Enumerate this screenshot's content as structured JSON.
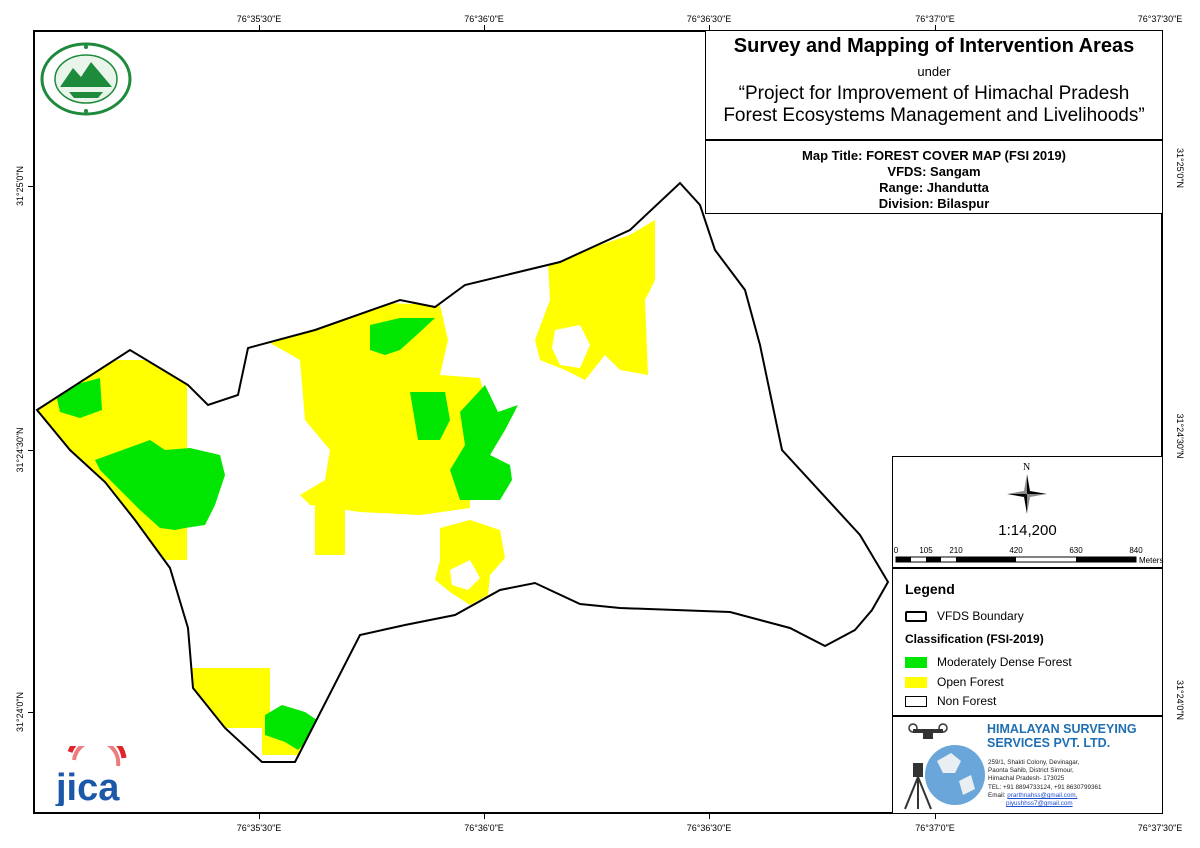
{
  "title": {
    "main": "Survey and Mapping of Intervention Areas",
    "under": "under",
    "project_line1": "“Project for Improvement of Himachal Pradesh",
    "project_line2": "Forest Ecosystems Management and Livelihoods”"
  },
  "info": {
    "map_title": "Map Title: FOREST COVER MAP (FSI 2019)",
    "vfds": "VFDS: Sangam",
    "range": "Range: Jhandutta",
    "division": "Division: Bilaspur"
  },
  "grid": {
    "longitudes": [
      "76°35'30\"E",
      "76°36'0\"E",
      "76°36'30\"E",
      "76°37'0\"E",
      "76°37'30\"E"
    ],
    "latitudes": [
      "31°25'0\"N",
      "31°24'30\"N",
      "31°24'0\"N"
    ]
  },
  "north_label": "N",
  "scale": {
    "ratio": "1:14,200",
    "labels": [
      "0",
      "105",
      "210",
      "420",
      "630",
      "840"
    ],
    "unit": "Meters"
  },
  "legend": {
    "title": "Legend",
    "boundary": "VFDS Boundary",
    "classification_title": "Classification (FSI-2019)",
    "items": [
      {
        "label": "Moderately Dense Forest",
        "color": "#00e600"
      },
      {
        "label": "Open Forest",
        "color": "#ffff00"
      },
      {
        "label": "Non Forest",
        "color": "#ffffff"
      }
    ]
  },
  "company": {
    "name_line1": "HIMALAYAN SURVEYING",
    "name_line2": "SERVICES PVT. LTD.",
    "address_line1": "259/1, Shakti Colony, Devinagar,",
    "address_line2": "Paonta Sahib, District Sirmour,",
    "address_line3": "Himachal Pradesh- 173025",
    "phone": "TEL: +91 8894733124, +91 8630799361",
    "email_label": "Email:",
    "email1": "prarthnahss@gmail.com,",
    "email2": "piyushhss7@gmail.com"
  },
  "jica_logo": "jica",
  "colors": {
    "mdf": "#00e600",
    "of": "#ffff00",
    "boundary": "#000000",
    "accent": "#1f6fb2"
  }
}
